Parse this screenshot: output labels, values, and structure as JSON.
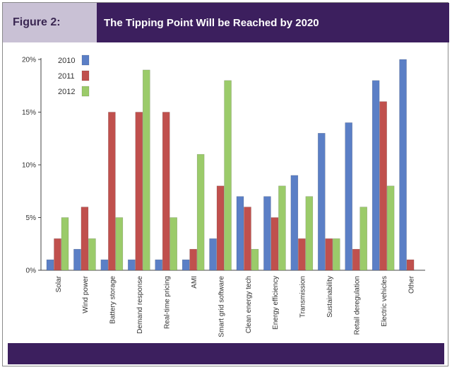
{
  "figure": {
    "label": "Figure 2:",
    "title": "The Tipping Point Will be Reached by 2020"
  },
  "colors": {
    "header_dark": "#3c1f5e",
    "header_light": "#c9c1d5",
    "series_2010": "#5b7fc6",
    "series_2011": "#c0504d",
    "series_2012": "#9bcb6a"
  },
  "chart_data": {
    "type": "bar",
    "title": "The Tipping Point Will be Reached by 2020",
    "xlabel": "",
    "ylabel": "",
    "ylim": [
      0,
      20
    ],
    "yticks": [
      "0%",
      "5%",
      "10%",
      "15%",
      "20%"
    ],
    "grid": false,
    "legend_position": "top-left",
    "categories": [
      "Solar",
      "Wind power",
      "Battery storage",
      "Demand response",
      "Real-time pricing",
      "AMI",
      "Smart grid software",
      "Clean energy tech",
      "Energy efficiency",
      "Transmission",
      "Sustainability",
      "Retail deregulation",
      "Electric vehicles",
      "Other"
    ],
    "series": [
      {
        "name": "2010",
        "color": "#5b7fc6",
        "values": [
          1,
          2,
          1,
          1,
          1,
          1,
          3,
          7,
          7,
          9,
          13,
          14,
          18,
          20
        ]
      },
      {
        "name": "2011",
        "color": "#c0504d",
        "values": [
          3,
          6,
          15,
          15,
          15,
          2,
          8,
          6,
          5,
          3,
          3,
          2,
          16,
          1
        ]
      },
      {
        "name": "2012",
        "color": "#9bcb6a",
        "values": [
          5,
          3,
          5,
          19,
          5,
          11,
          18,
          2,
          8,
          7,
          3,
          6,
          8,
          0
        ]
      }
    ]
  }
}
